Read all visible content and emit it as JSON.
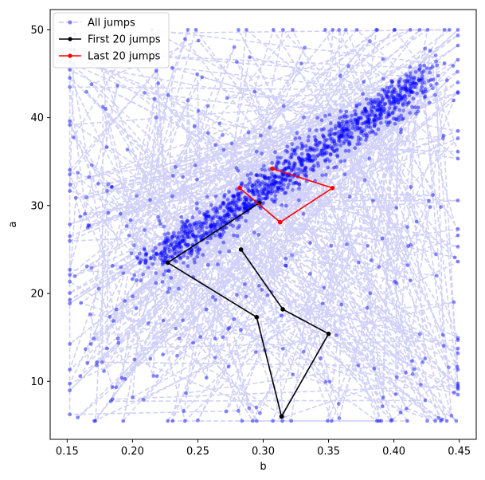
{
  "chart_data": {
    "type": "scatter",
    "title": "",
    "xlabel": "b",
    "ylabel": "a",
    "xlim": [
      0.137,
      0.463
    ],
    "ylim": [
      3.4,
      52.3
    ],
    "xticks": [
      "0.15",
      "0.20",
      "0.25",
      "0.30",
      "0.35",
      "0.40",
      "0.45"
    ],
    "yticks": [
      "10",
      "20",
      "30",
      "40",
      "50"
    ],
    "grid": false,
    "legend_position": "top-left",
    "series": [
      {
        "name": "All jumps",
        "color": "#0000ff",
        "line_color": "#c8c8f8",
        "style": "dashed-line-with-dots",
        "sampled_points": [
          [
            0.155,
            45.2
          ],
          [
            0.19,
            42.1
          ],
          [
            0.24,
            46.3
          ],
          [
            0.31,
            48.0
          ],
          [
            0.34,
            50.0
          ],
          [
            0.41,
            49.5
          ],
          [
            0.44,
            49.8
          ],
          [
            0.2,
            38.5
          ],
          [
            0.25,
            40.0
          ],
          [
            0.38,
            44.0
          ],
          [
            0.44,
            42.0
          ],
          [
            0.17,
            34.5
          ],
          [
            0.3,
            37.0
          ],
          [
            0.4,
            38.5
          ],
          [
            0.16,
            27.0
          ],
          [
            0.21,
            29.5
          ],
          [
            0.27,
            30.5
          ],
          [
            0.35,
            33.0
          ],
          [
            0.43,
            33.5
          ],
          [
            0.155,
            20.0
          ],
          [
            0.2,
            22.5
          ],
          [
            0.26,
            24.0
          ],
          [
            0.33,
            25.5
          ],
          [
            0.42,
            27.0
          ],
          [
            0.16,
            16.0
          ],
          [
            0.22,
            18.0
          ],
          [
            0.28,
            19.0
          ],
          [
            0.36,
            20.5
          ],
          [
            0.44,
            21.5
          ],
          [
            0.16,
            11.5
          ],
          [
            0.21,
            12.5
          ],
          [
            0.27,
            13.0
          ],
          [
            0.34,
            14.0
          ],
          [
            0.43,
            12.0
          ],
          [
            0.2,
            7.0
          ],
          [
            0.25,
            6.5
          ],
          [
            0.3,
            5.8
          ],
          [
            0.36,
            6.0
          ],
          [
            0.43,
            6.2
          ],
          [
            0.445,
            8.7
          ]
        ]
      },
      {
        "name": "First 20 jumps",
        "color": "#000000",
        "points": [
          [
            0.297,
            30.3
          ],
          [
            0.227,
            23.5
          ],
          [
            0.295,
            17.3
          ],
          [
            0.314,
            6.0
          ],
          [
            0.35,
            15.4
          ],
          [
            0.315,
            18.2
          ],
          [
            0.283,
            25.0
          ]
        ]
      },
      {
        "name": "Last 20 jumps",
        "color": "#ff0000",
        "points": [
          [
            0.282,
            32.0
          ],
          [
            0.313,
            28.1
          ],
          [
            0.353,
            32.0
          ],
          [
            0.307,
            34.2
          ]
        ]
      }
    ]
  }
}
